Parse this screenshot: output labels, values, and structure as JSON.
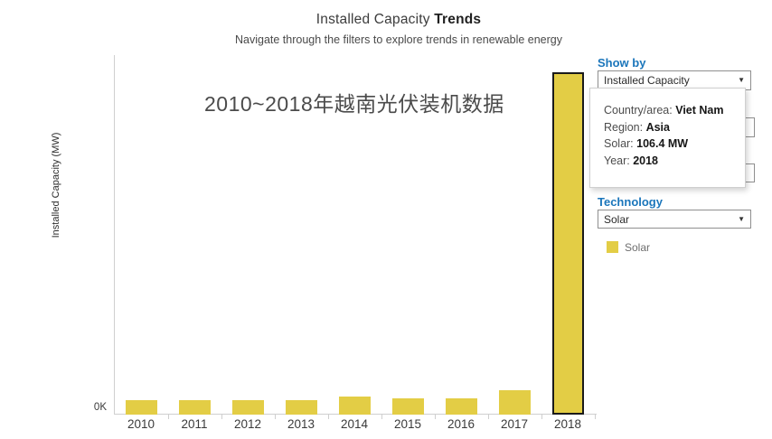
{
  "header": {
    "title_regular": "Installed Capacity ",
    "title_bold": "Trends",
    "subtitle": "Navigate through the filters to explore trends in renewable energy"
  },
  "annotation": {
    "text": "2010~2018年越南光伏装机数据"
  },
  "chart_data": {
    "type": "bar",
    "title": "Installed Capacity Trends",
    "series_name": "Solar",
    "categories": [
      "2010",
      "2011",
      "2012",
      "2013",
      "2014",
      "2015",
      "2016",
      "2017",
      "2018"
    ],
    "values": [
      4.5,
      4.5,
      4.5,
      4.5,
      5.5,
      5.0,
      5.0,
      7.5,
      106.4
    ],
    "unit": "MW",
    "xlabel": "",
    "ylabel": "Installed Capacity (MW)",
    "y_tick_labels": [
      "0K"
    ],
    "ylim": [
      0,
      112
    ],
    "grid": false,
    "bar_color": "#e3cd45",
    "highlighted_category": "2018",
    "highlight_border_color": "#1a1a1a"
  },
  "y_axis": {
    "label": "Installed Capacity (MW)",
    "tick_zero": "0K"
  },
  "filters": {
    "show_by": {
      "label": "Show by",
      "value": "Installed Capacity"
    },
    "technology": {
      "label": "Technology",
      "value": "Solar"
    }
  },
  "tooltip": {
    "rows": [
      {
        "label": "Country/area: ",
        "value": "Viet Nam"
      },
      {
        "label": "Region: ",
        "value": "Asia"
      },
      {
        "label": "Solar: ",
        "value": "106.4 MW"
      },
      {
        "label": "Year: ",
        "value": "2018"
      }
    ]
  },
  "legend": {
    "items": [
      {
        "label": "Solar",
        "color": "#e3cd45"
      }
    ]
  },
  "colors": {
    "accent_blue": "#1b76bb",
    "bar_yellow": "#e3cd45",
    "axis_gray": "#cfcfcf"
  }
}
